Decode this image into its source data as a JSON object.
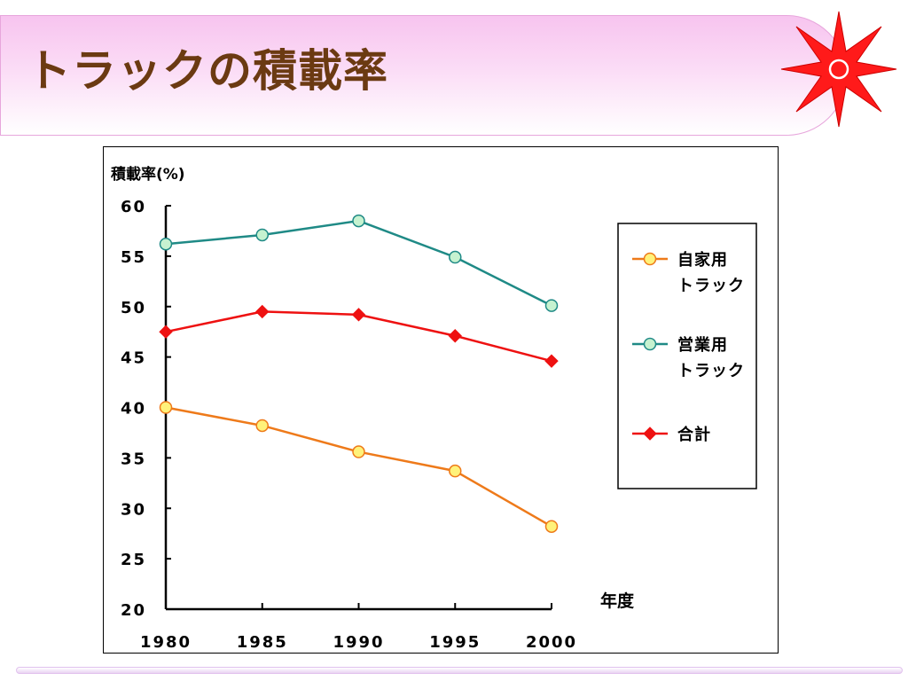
{
  "header": {
    "title": "トラックの積載率"
  },
  "colors": {
    "title_text": "#6b3a12",
    "badge_red": "#ff1a1a"
  },
  "chart_data": {
    "type": "line",
    "title": "",
    "ylabel": "積載率(%)",
    "xlabel": "年度",
    "x": [
      "1980",
      "1985",
      "1990",
      "1995",
      "2000"
    ],
    "ylim": [
      20,
      60
    ],
    "yticks": [
      "20",
      "25",
      "30",
      "35",
      "40",
      "45",
      "50",
      "55",
      "60"
    ],
    "legend_position": "right",
    "series": [
      {
        "name": "自家用トラック",
        "legend_lines": [
          "自家用",
          "トラック"
        ],
        "values": [
          40.0,
          38.2,
          35.6,
          33.7,
          28.2
        ],
        "color": "#ee7a1a",
        "marker": "circle",
        "marker_fill": "#fff27a"
      },
      {
        "name": "営業用トラック",
        "legend_lines": [
          "営業用",
          "トラック"
        ],
        "values": [
          56.2,
          57.1,
          58.5,
          54.9,
          50.1
        ],
        "color": "#1f8a86",
        "marker": "circle",
        "marker_fill": "#c6f2d0"
      },
      {
        "name": "合計",
        "legend_lines": [
          "合計"
        ],
        "values": [
          47.5,
          49.5,
          49.2,
          47.1,
          44.6
        ],
        "color": "#ee1111",
        "marker": "diamond",
        "marker_fill": "#ee1111"
      }
    ]
  }
}
